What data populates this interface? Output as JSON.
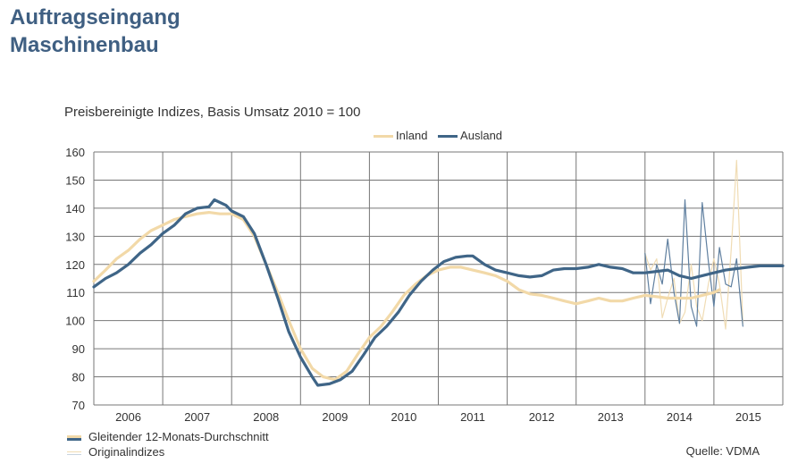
{
  "page": {
    "title_line1": "Auftragseingang",
    "title_line2": "Maschinenbau",
    "subtitle": "Preisbereinigte Indizes, Basis Umsatz 2010 = 100",
    "legend_inland": "Inland",
    "legend_ausland": "Ausland",
    "legend_smooth": "Gleitender 12-Monats-Durchschnitt",
    "legend_original": "Originalindizes",
    "source": "Quelle: VDMA"
  },
  "colors": {
    "inland": "#f2d9a8",
    "ausland": "#3f6587",
    "inland_thin": "#f0dcb4",
    "ausland_thin": "#5f7f9f",
    "grid": "#777777"
  },
  "chart_data": {
    "type": "line",
    "title": "Preisbereinigte Indizes, Basis Umsatz 2010 = 100",
    "xlabel": "",
    "ylabel": "",
    "x_categories": [
      "2006",
      "2007",
      "2008",
      "2009",
      "2010",
      "2011",
      "2012",
      "2013",
      "2014",
      "2015"
    ],
    "xlim": [
      2006.0,
      2016.0
    ],
    "ylim": [
      70,
      160
    ],
    "yticks": [
      70,
      80,
      90,
      100,
      110,
      120,
      130,
      140,
      150,
      160
    ],
    "grid": true,
    "legend_position": "top",
    "series": [
      {
        "name": "Inland",
        "style": "smoothed",
        "points": [
          [
            2006.0,
            114
          ],
          [
            2006.17,
            118
          ],
          [
            2006.33,
            122
          ],
          [
            2006.5,
            125
          ],
          [
            2006.67,
            129
          ],
          [
            2006.83,
            132
          ],
          [
            2007.0,
            134
          ],
          [
            2007.17,
            136
          ],
          [
            2007.33,
            137
          ],
          [
            2007.5,
            138
          ],
          [
            2007.67,
            138.5
          ],
          [
            2007.83,
            138
          ],
          [
            2008.0,
            138
          ],
          [
            2008.17,
            136
          ],
          [
            2008.33,
            130
          ],
          [
            2008.5,
            120
          ],
          [
            2008.67,
            110
          ],
          [
            2008.83,
            100
          ],
          [
            2009.0,
            90
          ],
          [
            2009.17,
            83
          ],
          [
            2009.33,
            80
          ],
          [
            2009.5,
            79
          ],
          [
            2009.67,
            82
          ],
          [
            2009.83,
            88
          ],
          [
            2010.0,
            94
          ],
          [
            2010.17,
            98
          ],
          [
            2010.33,
            103
          ],
          [
            2010.5,
            109
          ],
          [
            2010.67,
            113
          ],
          [
            2010.83,
            116
          ],
          [
            2011.0,
            118
          ],
          [
            2011.17,
            119
          ],
          [
            2011.33,
            119
          ],
          [
            2011.5,
            118
          ],
          [
            2011.67,
            117
          ],
          [
            2011.83,
            116
          ],
          [
            2012.0,
            114
          ],
          [
            2012.17,
            111
          ],
          [
            2012.33,
            109.5
          ],
          [
            2012.5,
            109
          ],
          [
            2012.67,
            108
          ],
          [
            2012.83,
            107
          ],
          [
            2013.0,
            106
          ],
          [
            2013.17,
            107
          ],
          [
            2013.33,
            108
          ],
          [
            2013.5,
            107
          ],
          [
            2013.67,
            107
          ],
          [
            2013.83,
            108
          ],
          [
            2014.0,
            109
          ],
          [
            2014.17,
            108.5
          ],
          [
            2014.33,
            108
          ],
          [
            2014.5,
            108
          ],
          [
            2014.67,
            108
          ],
          [
            2014.83,
            109
          ],
          [
            2015.0,
            110
          ],
          [
            2015.08,
            111
          ]
        ]
      },
      {
        "name": "Ausland",
        "style": "smoothed",
        "points": [
          [
            2006.0,
            112
          ],
          [
            2006.17,
            115
          ],
          [
            2006.33,
            117
          ],
          [
            2006.5,
            120
          ],
          [
            2006.67,
            124
          ],
          [
            2006.83,
            127
          ],
          [
            2007.0,
            131
          ],
          [
            2007.17,
            134
          ],
          [
            2007.33,
            138
          ],
          [
            2007.5,
            140
          ],
          [
            2007.67,
            140.5
          ],
          [
            2007.75,
            143
          ],
          [
            2007.92,
            141
          ],
          [
            2008.0,
            139
          ],
          [
            2008.17,
            137
          ],
          [
            2008.33,
            131
          ],
          [
            2008.5,
            120
          ],
          [
            2008.67,
            108
          ],
          [
            2008.83,
            96
          ],
          [
            2009.0,
            87
          ],
          [
            2009.17,
            80
          ],
          [
            2009.25,
            77
          ],
          [
            2009.42,
            77.5
          ],
          [
            2009.58,
            79
          ],
          [
            2009.75,
            82
          ],
          [
            2009.92,
            88
          ],
          [
            2010.08,
            94
          ],
          [
            2010.25,
            98
          ],
          [
            2010.42,
            103
          ],
          [
            2010.58,
            109
          ],
          [
            2010.75,
            114
          ],
          [
            2010.92,
            118
          ],
          [
            2011.08,
            121
          ],
          [
            2011.25,
            122.5
          ],
          [
            2011.42,
            123
          ],
          [
            2011.5,
            123
          ],
          [
            2011.67,
            120
          ],
          [
            2011.83,
            118
          ],
          [
            2012.0,
            117
          ],
          [
            2012.17,
            116
          ],
          [
            2012.33,
            115.5
          ],
          [
            2012.5,
            116
          ],
          [
            2012.67,
            118
          ],
          [
            2012.83,
            118.5
          ],
          [
            2013.0,
            118.5
          ],
          [
            2013.17,
            119
          ],
          [
            2013.33,
            120
          ],
          [
            2013.5,
            119
          ],
          [
            2013.67,
            118.5
          ],
          [
            2013.83,
            117
          ],
          [
            2014.0,
            117
          ],
          [
            2014.17,
            117.5
          ],
          [
            2014.33,
            118
          ],
          [
            2014.5,
            116
          ],
          [
            2014.67,
            115
          ],
          [
            2014.83,
            116
          ],
          [
            2015.0,
            117
          ],
          [
            2015.17,
            118
          ],
          [
            2015.33,
            118.5
          ],
          [
            2015.5,
            119
          ],
          [
            2015.67,
            119.5
          ],
          [
            2015.83,
            119.5
          ],
          [
            2016.0,
            119.5
          ]
        ]
      },
      {
        "name": "Inland",
        "style": "original",
        "points": [
          [
            2014.0,
            124
          ],
          [
            2014.08,
            118
          ],
          [
            2014.17,
            122
          ],
          [
            2014.25,
            101
          ],
          [
            2014.33,
            108
          ],
          [
            2014.42,
            115
          ],
          [
            2014.5,
            99
          ],
          [
            2014.58,
            103
          ],
          [
            2014.67,
            120
          ],
          [
            2014.75,
            105
          ],
          [
            2014.83,
            100
          ],
          [
            2014.92,
            113
          ],
          [
            2015.0,
            122
          ],
          [
            2015.08,
            113
          ],
          [
            2015.17,
            97
          ],
          [
            2015.25,
            125
          ],
          [
            2015.33,
            157
          ],
          [
            2015.42,
            99
          ]
        ]
      },
      {
        "name": "Ausland",
        "style": "original",
        "points": [
          [
            2014.0,
            124
          ],
          [
            2014.08,
            106
          ],
          [
            2014.17,
            120
          ],
          [
            2014.25,
            113
          ],
          [
            2014.33,
            129
          ],
          [
            2014.42,
            110
          ],
          [
            2014.5,
            99
          ],
          [
            2014.58,
            143
          ],
          [
            2014.67,
            105
          ],
          [
            2014.75,
            98
          ],
          [
            2014.83,
            142
          ],
          [
            2014.92,
            121
          ],
          [
            2015.0,
            105
          ],
          [
            2015.08,
            126
          ],
          [
            2015.17,
            113
          ],
          [
            2015.25,
            112
          ],
          [
            2015.33,
            122
          ],
          [
            2015.42,
            98
          ]
        ]
      }
    ]
  }
}
